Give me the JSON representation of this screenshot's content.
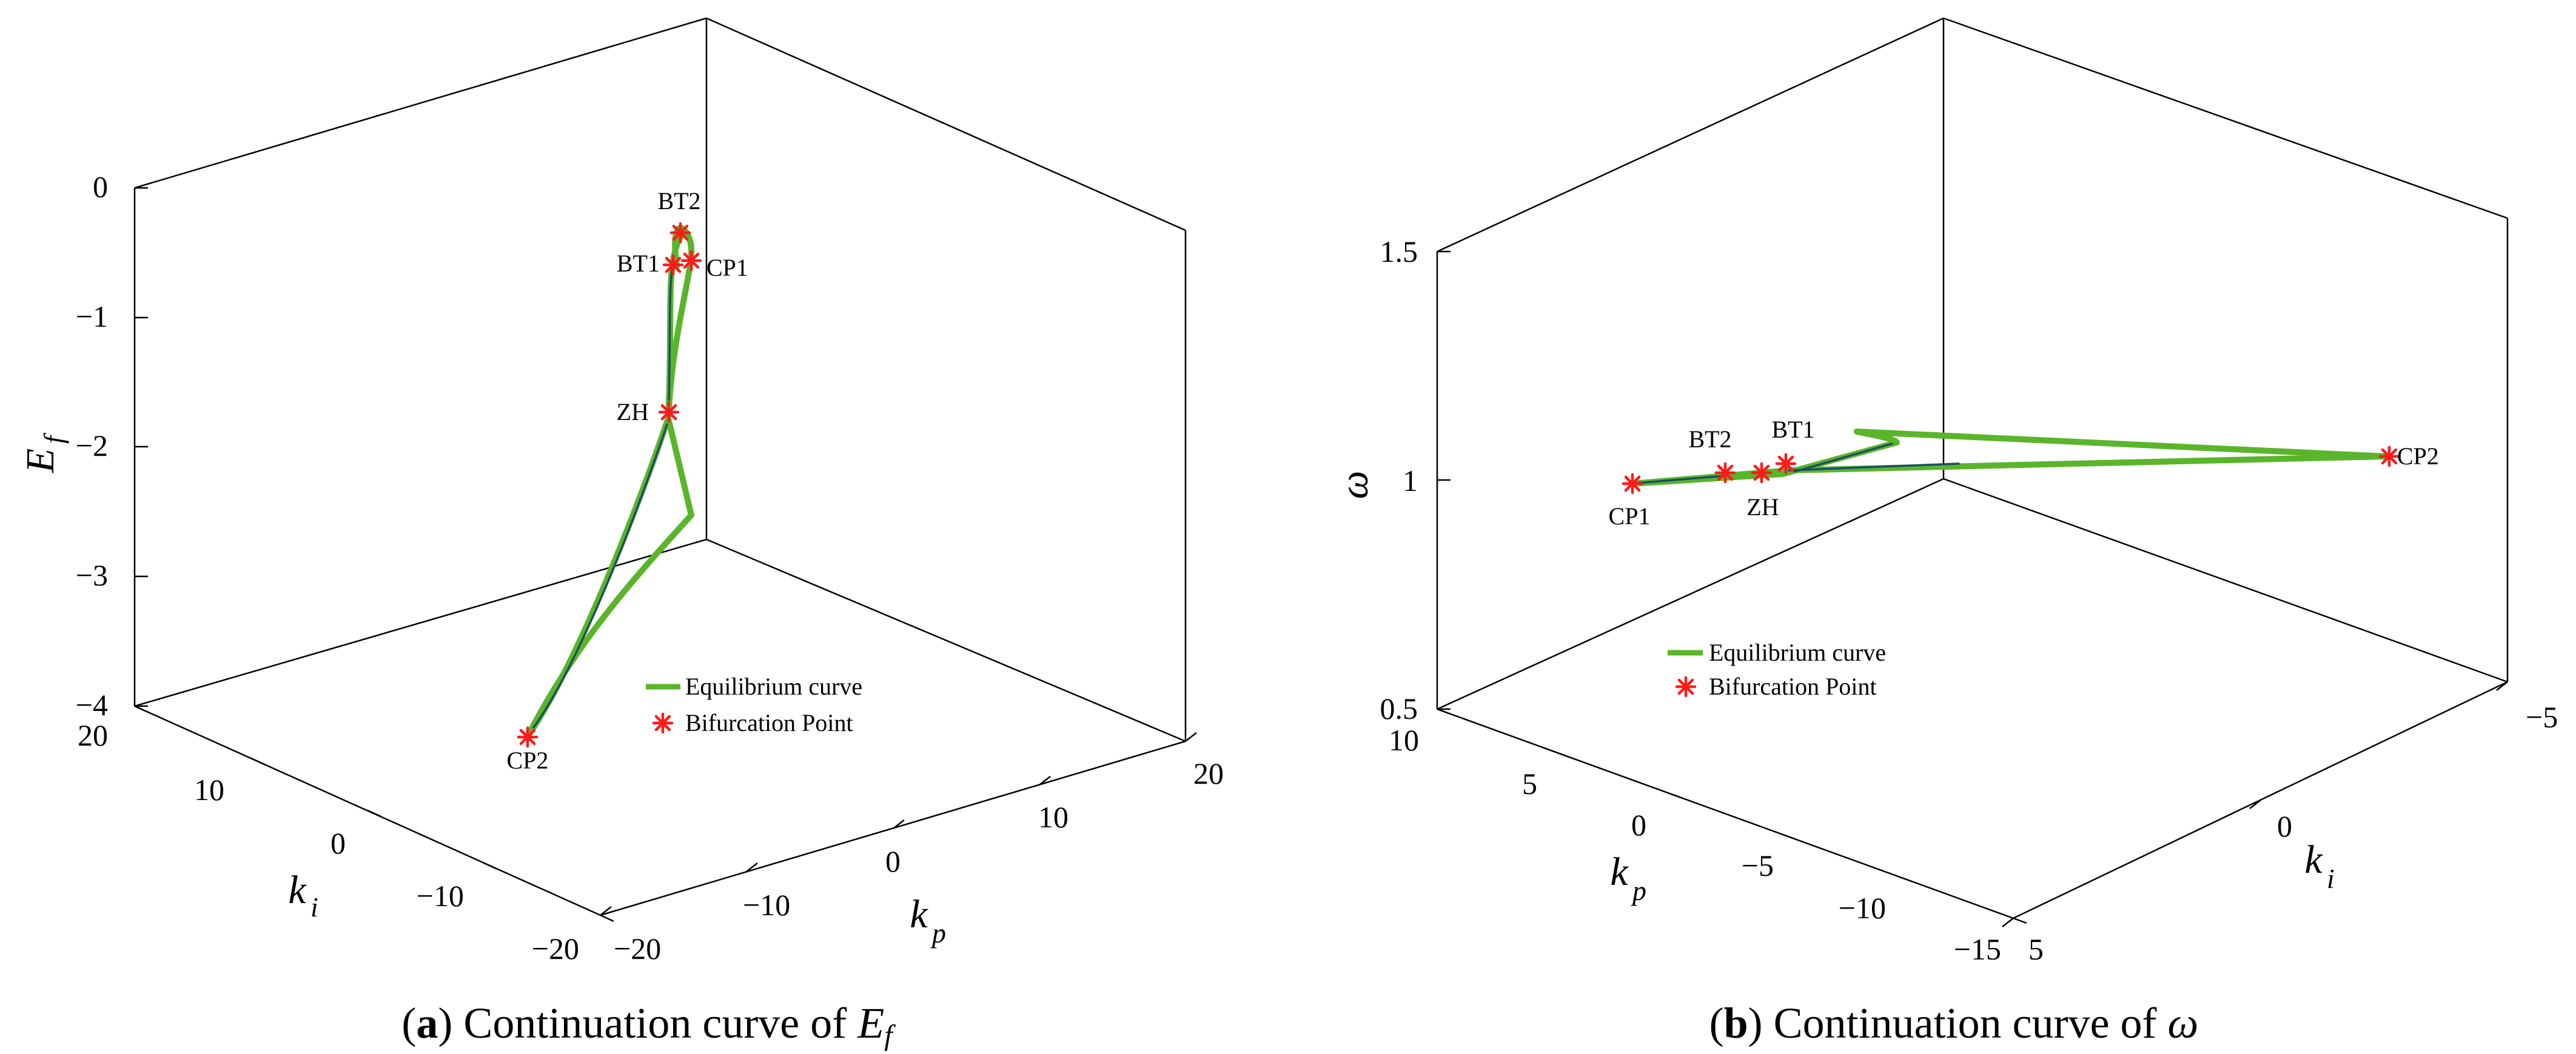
{
  "chart_data": [
    {
      "type": "line",
      "caption": {
        "open": "(",
        "letter": "a",
        "close": ")",
        "text": " Continuation curve of ",
        "var": "E",
        "var_sub": "f"
      },
      "axes": {
        "z": {
          "var": "E",
          "sub": "f",
          "ticks": [
            "0",
            "−1",
            "−2",
            "−3",
            "−4"
          ],
          "range": [
            -4,
            0
          ]
        },
        "x": {
          "var": "k",
          "sub": "i",
          "ticks": [
            "20",
            "10",
            "0",
            "−10",
            "−20"
          ],
          "range": [
            -20,
            20
          ]
        },
        "y": {
          "var": "k",
          "sub": "p",
          "ticks": [
            "−20",
            "−10",
            "0",
            "10",
            "20"
          ],
          "range": [
            -20,
            20
          ]
        }
      },
      "series": [
        {
          "name": "Equilibrium curve",
          "color": "#5ab52b"
        }
      ],
      "markers": {
        "name": "Bifurcation Point",
        "color": "#ff1a1a"
      },
      "bifurcation_points": [
        {
          "label": "BT2",
          "ef": -0.35
        },
        {
          "label": "BT1",
          "ef": -0.6
        },
        {
          "label": "CP1",
          "ef": -0.58
        },
        {
          "label": "ZH",
          "ef": -1.75
        },
        {
          "label": "CP2",
          "ef": -4.0
        }
      ],
      "legend_placement": "lower-center"
    },
    {
      "type": "line",
      "caption": {
        "open": "(",
        "letter": "b",
        "close": ")",
        "text": " Continuation curve of ",
        "var": "ω"
      },
      "axes": {
        "z": {
          "var": "ω",
          "ticks": [
            "1.5",
            "1",
            "0.5"
          ],
          "range": [
            0.5,
            1.5
          ]
        },
        "x": {
          "var": "k",
          "sub": "p",
          "ticks": [
            "10",
            "5",
            "0",
            "−5",
            "−10",
            "−15"
          ],
          "range": [
            -15,
            10
          ]
        },
        "y": {
          "var": "k",
          "sub": "i",
          "ticks": [
            "−5",
            "0",
            "5"
          ],
          "range": [
            -5,
            5
          ]
        }
      },
      "series": [
        {
          "name": "Equilibrium curve",
          "color": "#5ab52b"
        }
      ],
      "markers": {
        "name": "Bifurcation Point",
        "color": "#ff1a1a"
      },
      "bifurcation_points": [
        {
          "label": "CP1",
          "omega": 0.99
        },
        {
          "label": "BT2",
          "omega": 1.01
        },
        {
          "label": "BT1",
          "omega": 1.03
        },
        {
          "label": "ZH",
          "omega": 1.01
        },
        {
          "label": "CP2",
          "omega": 1.04
        }
      ],
      "legend_placement": "lower-left"
    }
  ]
}
